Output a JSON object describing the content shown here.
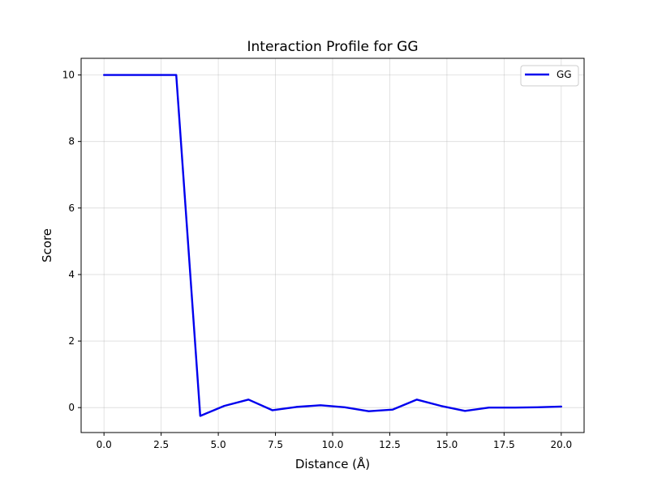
{
  "chart_data": {
    "type": "line",
    "title": "Interaction Profile for GG",
    "xlabel": "Distance (Å)",
    "ylabel": "Score",
    "xlim": [
      -1.0,
      21.0
    ],
    "ylim": [
      -0.75,
      10.5
    ],
    "xticks": [
      0.0,
      2.5,
      5.0,
      7.5,
      10.0,
      12.5,
      15.0,
      17.5,
      20.0
    ],
    "xtick_labels": [
      "0.0",
      "2.5",
      "5.0",
      "7.5",
      "10.0",
      "12.5",
      "15.0",
      "17.5",
      "20.0"
    ],
    "yticks": [
      0,
      2,
      4,
      6,
      8,
      10
    ],
    "ytick_labels": [
      "0",
      "2",
      "4",
      "6",
      "8",
      "10"
    ],
    "grid": true,
    "legend_position": "top-right",
    "series": [
      {
        "name": "GG",
        "color": "#0000ee",
        "x": [
          0.0,
          1.05,
          2.1,
          3.16,
          4.21,
          5.26,
          6.32,
          7.37,
          8.42,
          9.47,
          10.53,
          11.58,
          12.63,
          13.68,
          14.74,
          15.79,
          16.84,
          17.89,
          18.95,
          20.0
        ],
        "y": [
          10.0,
          10.0,
          10.0,
          10.0,
          -0.25,
          0.05,
          0.24,
          -0.08,
          0.02,
          0.07,
          0.01,
          -0.11,
          -0.06,
          0.24,
          0.05,
          -0.1,
          0.0,
          0.0,
          0.01,
          0.03
        ]
      }
    ]
  }
}
